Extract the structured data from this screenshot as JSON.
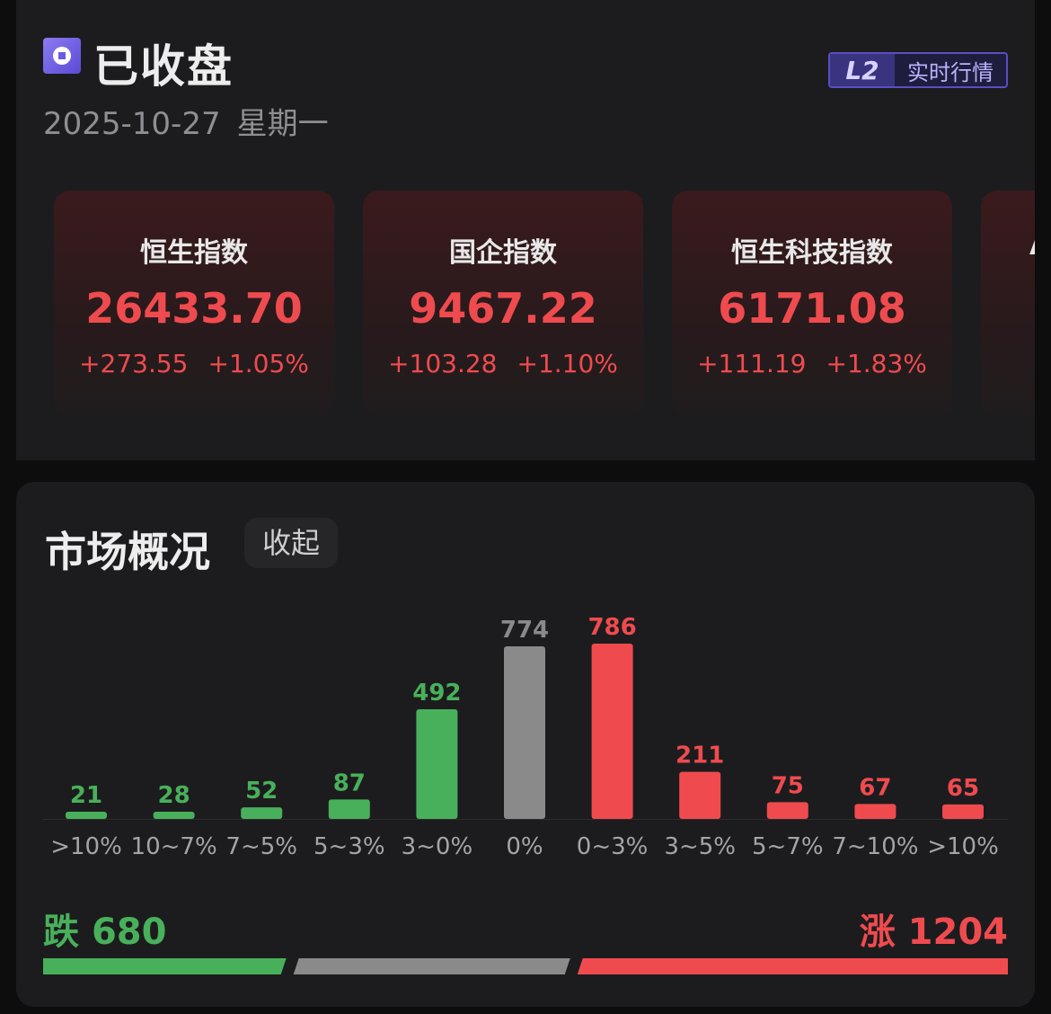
{
  "header": {
    "status": "已收盘",
    "date": "2025-10-27",
    "weekday": "星期一",
    "badge_mark": "L2",
    "badge_text": "实时行情"
  },
  "indices": [
    {
      "name": "恒生指数",
      "value": "26433.70",
      "change": "+273.55",
      "percent": "+1.05%"
    },
    {
      "name": "国企指数",
      "value": "9467.22",
      "change": "+103.28",
      "percent": "+1.10%"
    },
    {
      "name": "恒生科技指数",
      "value": "6171.08",
      "change": "+111.19",
      "percent": "+1.83%"
    },
    {
      "name": "A",
      "value": "",
      "change": "+",
      "percent": ""
    }
  ],
  "market": {
    "title": "市场概况",
    "collapse_label": "收起",
    "fall_label": "跌",
    "fall_count": "680",
    "rise_label": "涨",
    "rise_count": "1204",
    "colors": {
      "down": "#48b05a",
      "flat": "#8a8a8a",
      "up": "#ef4b4f"
    }
  },
  "chart_data": {
    "type": "bar",
    "categories": [
      ">10%",
      "10~7%",
      "7~5%",
      "5~3%",
      "3~0%",
      "0%",
      "0~3%",
      "3~5%",
      "5~7%",
      "7~10%",
      ">10%"
    ],
    "values": [
      21,
      28,
      52,
      87,
      492,
      774,
      786,
      211,
      75,
      67,
      65
    ],
    "groups": [
      "down",
      "down",
      "down",
      "down",
      "down",
      "flat",
      "up",
      "up",
      "up",
      "up",
      "up"
    ],
    "summary": {
      "down": 680,
      "up": 1204
    }
  }
}
